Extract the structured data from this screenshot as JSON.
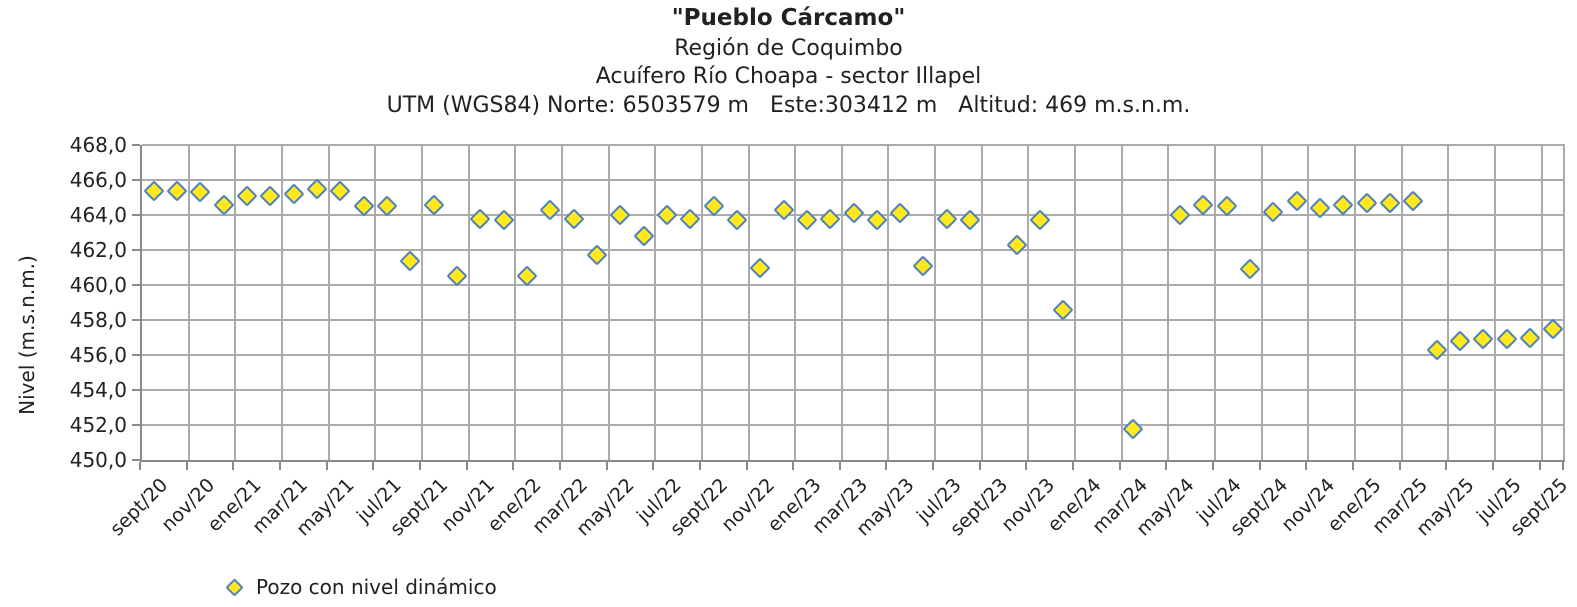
{
  "header": {
    "title": "\"Pueblo Cárcamo\"",
    "subtitle_region": "Región de Coquimbo",
    "subtitle_aquifer": "Acuífero Río Choapa - sector Illapel",
    "subtitle_utm": "UTM (WGS84) Norte: 6503579 m   Este:303412 m   Altitud: 469 m.s.n.m."
  },
  "chart_data": {
    "type": "scatter",
    "title": "\"Pueblo Cárcamo\"",
    "xlabel": "",
    "ylabel": "Nivel (m.s.n.m.)",
    "ylim": [
      450.0,
      468.0
    ],
    "ytick_step": 2.0,
    "ytick_labels": [
      "450,0",
      "452,0",
      "454,0",
      "456,0",
      "458,0",
      "460,0",
      "462,0",
      "464,0",
      "466,0",
      "468,0"
    ],
    "grid": true,
    "legend_position": "bottom-left",
    "x_tick_labels": [
      "sept/20",
      "nov/20",
      "ene/21",
      "mar/21",
      "may/21",
      "jul/21",
      "sept/21",
      "nov/21",
      "ene/22",
      "mar/22",
      "may/22",
      "jul/22",
      "sept/22",
      "nov/22",
      "ene/23",
      "mar/23",
      "may/23",
      "jul/23",
      "sept/23",
      "nov/23",
      "ene/24",
      "mar/24",
      "may/24",
      "jul/24",
      "sept/24",
      "nov/24",
      "ene/25",
      "mar/25",
      "may/25",
      "jul/25",
      "sept/25"
    ],
    "series": [
      {
        "name": "Pozo con nivel dinámico",
        "marker": "diamond",
        "marker_fill": "#ffe81c",
        "marker_border": "#4f81bd",
        "months": [
          "sept/20",
          "oct/20",
          "nov/20",
          "dic/20",
          "ene/21",
          "feb/21",
          "mar/21",
          "abr/21",
          "may/21",
          "jun/21",
          "jul/21",
          "ago/21",
          "sept/21",
          "oct/21",
          "nov/21",
          "dic/21",
          "ene/22",
          "feb/22",
          "mar/22",
          "abr/22",
          "may/22",
          "jun/22",
          "jul/22",
          "ago/22",
          "sept/22",
          "oct/22",
          "nov/22",
          "dic/22",
          "ene/23",
          "feb/23",
          "mar/23",
          "abr/23",
          "may/23",
          "jun/23",
          "jul/23",
          "ago/23",
          "sept/23",
          "oct/23",
          "nov/23",
          "dic/23",
          "ene/24",
          "feb/24",
          "mar/24",
          "abr/24",
          "may/24",
          "jun/24",
          "jul/24",
          "ago/24",
          "sept/24",
          "oct/24",
          "nov/24",
          "dic/24",
          "ene/25",
          "feb/25",
          "mar/25",
          "abr/25",
          "may/25",
          "jun/25",
          "jul/25",
          "ago/25",
          "sept/25"
        ],
        "values": [
          465.4,
          465.4,
          465.3,
          464.6,
          465.1,
          465.1,
          465.2,
          465.5,
          465.4,
          464.5,
          464.5,
          461.4,
          464.6,
          460.5,
          463.8,
          463.7,
          460.5,
          464.3,
          463.8,
          461.7,
          464.0,
          462.8,
          464.0,
          463.8,
          464.5,
          463.7,
          461.0,
          464.3,
          463.7,
          463.8,
          464.1,
          463.7,
          464.1,
          461.1,
          463.8,
          463.7,
          null,
          462.3,
          463.7,
          458.6,
          null,
          null,
          451.8,
          null,
          464.0,
          464.6,
          464.5,
          460.9,
          464.2,
          464.8,
          464.4,
          464.6,
          464.7,
          464.7,
          464.8,
          456.3,
          456.8,
          456.9,
          456.9,
          457.0,
          457.5
        ]
      }
    ]
  },
  "legend": {
    "label": "Pozo con nivel dinámico"
  },
  "colors": {
    "marker_fill": "#ffe81c",
    "marker_border": "#4f81bd",
    "gridline": "#ababab",
    "axis": "#8a8a8a",
    "text": "#212121"
  }
}
